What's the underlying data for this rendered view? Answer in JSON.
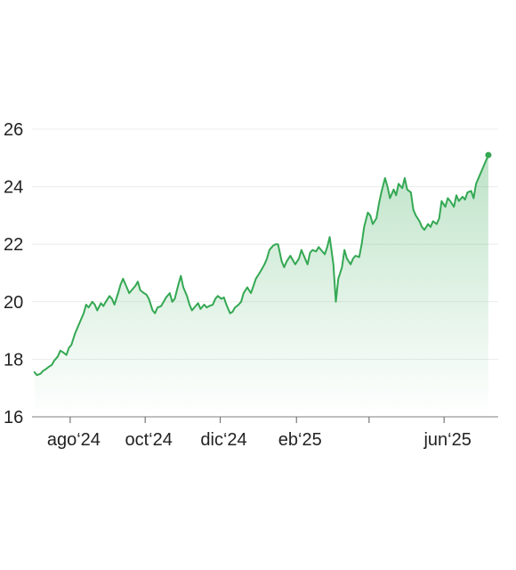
{
  "chart_data": {
    "type": "area",
    "title": "",
    "xlabel": "",
    "ylabel": "",
    "x_ticks": [
      {
        "label": "ago‘24",
        "date": "2024-08-01"
      },
      {
        "label": "oct‘24",
        "date": "2024-10-01"
      },
      {
        "label": "dic‘24",
        "date": "2024-12-01"
      },
      {
        "label": "eb‘25",
        "date": "2025-02-01"
      },
      {
        "label": "",
        "date": "2025-04-01"
      },
      {
        "label": "jun‘25",
        "date": "2025-06-01"
      }
    ],
    "xlim": [
      "2024-07-01",
      "2025-07-15"
    ],
    "ylim": [
      16,
      26
    ],
    "y_ticks": [
      16,
      18,
      20,
      22,
      24,
      26
    ],
    "grid": true,
    "series": [
      {
        "color": "#34a853",
        "points": [
          [
            "2024-07-03",
            17.55
          ],
          [
            "2024-07-05",
            17.45
          ],
          [
            "2024-07-08",
            17.5
          ],
          [
            "2024-07-10",
            17.6
          ],
          [
            "2024-07-12",
            17.65
          ],
          [
            "2024-07-15",
            17.75
          ],
          [
            "2024-07-17",
            17.8
          ],
          [
            "2024-07-19",
            17.95
          ],
          [
            "2024-07-22",
            18.1
          ],
          [
            "2024-07-24",
            18.3
          ],
          [
            "2024-07-26",
            18.25
          ],
          [
            "2024-07-29",
            18.15
          ],
          [
            "2024-07-31",
            18.4
          ],
          [
            "2024-08-02",
            18.5
          ],
          [
            "2024-08-05",
            18.9
          ],
          [
            "2024-08-07",
            19.1
          ],
          [
            "2024-08-09",
            19.3
          ],
          [
            "2024-08-12",
            19.6
          ],
          [
            "2024-08-14",
            19.9
          ],
          [
            "2024-08-16",
            19.8
          ],
          [
            "2024-08-19",
            20.0
          ],
          [
            "2024-08-21",
            19.9
          ],
          [
            "2024-08-23",
            19.7
          ],
          [
            "2024-08-26",
            19.95
          ],
          [
            "2024-08-28",
            19.85
          ],
          [
            "2024-08-30",
            20.0
          ],
          [
            "2024-09-02",
            20.2
          ],
          [
            "2024-09-04",
            20.1
          ],
          [
            "2024-09-06",
            19.9
          ],
          [
            "2024-09-09",
            20.3
          ],
          [
            "2024-09-11",
            20.6
          ],
          [
            "2024-09-13",
            20.8
          ],
          [
            "2024-09-16",
            20.5
          ],
          [
            "2024-09-18",
            20.3
          ],
          [
            "2024-09-20",
            20.4
          ],
          [
            "2024-09-23",
            20.55
          ],
          [
            "2024-09-25",
            20.7
          ],
          [
            "2024-09-27",
            20.4
          ],
          [
            "2024-09-30",
            20.3
          ],
          [
            "2024-10-02",
            20.25
          ],
          [
            "2024-10-04",
            20.1
          ],
          [
            "2024-10-07",
            19.7
          ],
          [
            "2024-10-09",
            19.6
          ],
          [
            "2024-10-11",
            19.8
          ],
          [
            "2024-10-14",
            19.85
          ],
          [
            "2024-10-16",
            20.0
          ],
          [
            "2024-10-18",
            20.15
          ],
          [
            "2024-10-21",
            20.3
          ],
          [
            "2024-10-23",
            20.0
          ],
          [
            "2024-10-25",
            20.1
          ],
          [
            "2024-10-28",
            20.6
          ],
          [
            "2024-10-30",
            20.9
          ],
          [
            "2024-11-01",
            20.5
          ],
          [
            "2024-11-04",
            20.2
          ],
          [
            "2024-11-06",
            19.9
          ],
          [
            "2024-11-08",
            19.7
          ],
          [
            "2024-11-11",
            19.85
          ],
          [
            "2024-11-13",
            19.95
          ],
          [
            "2024-11-15",
            19.75
          ],
          [
            "2024-11-18",
            19.9
          ],
          [
            "2024-11-20",
            19.8
          ],
          [
            "2024-11-22",
            19.85
          ],
          [
            "2024-11-25",
            19.9
          ],
          [
            "2024-11-27",
            20.1
          ],
          [
            "2024-11-29",
            20.2
          ],
          [
            "2024-12-02",
            20.1
          ],
          [
            "2024-12-04",
            20.15
          ],
          [
            "2024-12-06",
            19.9
          ],
          [
            "2024-12-09",
            19.6
          ],
          [
            "2024-12-11",
            19.65
          ],
          [
            "2024-12-13",
            19.8
          ],
          [
            "2024-12-16",
            19.9
          ],
          [
            "2024-12-18",
            20.0
          ],
          [
            "2024-12-20",
            20.3
          ],
          [
            "2024-12-23",
            20.5
          ],
          [
            "2024-12-26",
            20.3
          ],
          [
            "2024-12-30",
            20.8
          ],
          [
            "2025-01-02",
            21.0
          ],
          [
            "2025-01-06",
            21.3
          ],
          [
            "2025-01-08",
            21.5
          ],
          [
            "2025-01-10",
            21.8
          ],
          [
            "2025-01-13",
            21.95
          ],
          [
            "2025-01-15",
            22.0
          ],
          [
            "2025-01-17",
            22.0
          ],
          [
            "2025-01-20",
            21.4
          ],
          [
            "2025-01-22",
            21.2
          ],
          [
            "2025-01-24",
            21.4
          ],
          [
            "2025-01-27",
            21.6
          ],
          [
            "2025-01-29",
            21.45
          ],
          [
            "2025-01-31",
            21.3
          ],
          [
            "2025-02-03",
            21.5
          ],
          [
            "2025-02-05",
            21.8
          ],
          [
            "2025-02-07",
            21.6
          ],
          [
            "2025-02-10",
            21.3
          ],
          [
            "2025-02-12",
            21.7
          ],
          [
            "2025-02-14",
            21.8
          ],
          [
            "2025-02-17",
            21.75
          ],
          [
            "2025-02-19",
            21.9
          ],
          [
            "2025-02-21",
            21.8
          ],
          [
            "2025-02-24",
            21.65
          ],
          [
            "2025-02-26",
            21.9
          ],
          [
            "2025-02-28",
            22.25
          ],
          [
            "2025-03-03",
            21.3
          ],
          [
            "2025-03-05",
            20.0
          ],
          [
            "2025-03-07",
            20.8
          ],
          [
            "2025-03-10",
            21.2
          ],
          [
            "2025-03-12",
            21.8
          ],
          [
            "2025-03-14",
            21.5
          ],
          [
            "2025-03-17",
            21.3
          ],
          [
            "2025-03-19",
            21.5
          ],
          [
            "2025-03-21",
            21.6
          ],
          [
            "2025-03-24",
            21.55
          ],
          [
            "2025-03-26",
            22.0
          ],
          [
            "2025-03-28",
            22.6
          ],
          [
            "2025-03-31",
            23.1
          ],
          [
            "2025-04-02",
            23.0
          ],
          [
            "2025-04-04",
            22.7
          ],
          [
            "2025-04-07",
            22.9
          ],
          [
            "2025-04-09",
            23.4
          ],
          [
            "2025-04-11",
            23.8
          ],
          [
            "2025-04-14",
            24.3
          ],
          [
            "2025-04-16",
            24.0
          ],
          [
            "2025-04-18",
            23.6
          ],
          [
            "2025-04-21",
            23.9
          ],
          [
            "2025-04-23",
            23.7
          ],
          [
            "2025-04-25",
            24.1
          ],
          [
            "2025-04-28",
            23.95
          ],
          [
            "2025-04-30",
            24.3
          ],
          [
            "2025-05-02",
            23.9
          ],
          [
            "2025-05-05",
            23.8
          ],
          [
            "2025-05-07",
            23.2
          ],
          [
            "2025-05-09",
            23.0
          ],
          [
            "2025-05-12",
            22.8
          ],
          [
            "2025-05-14",
            22.6
          ],
          [
            "2025-05-16",
            22.5
          ],
          [
            "2025-05-19",
            22.7
          ],
          [
            "2025-05-21",
            22.6
          ],
          [
            "2025-05-23",
            22.8
          ],
          [
            "2025-05-26",
            22.7
          ],
          [
            "2025-05-28",
            22.9
          ],
          [
            "2025-05-30",
            23.5
          ],
          [
            "2025-06-02",
            23.3
          ],
          [
            "2025-06-04",
            23.6
          ],
          [
            "2025-06-06",
            23.5
          ],
          [
            "2025-06-09",
            23.3
          ],
          [
            "2025-06-11",
            23.7
          ],
          [
            "2025-06-13",
            23.5
          ],
          [
            "2025-06-16",
            23.65
          ],
          [
            "2025-06-18",
            23.55
          ],
          [
            "2025-06-20",
            23.8
          ],
          [
            "2025-06-23",
            23.85
          ],
          [
            "2025-06-25",
            23.6
          ],
          [
            "2025-06-27",
            24.1
          ],
          [
            "2025-06-30",
            24.4
          ],
          [
            "2025-07-02",
            24.6
          ],
          [
            "2025-07-04",
            24.8
          ],
          [
            "2025-07-07",
            25.1
          ]
        ]
      }
    ]
  }
}
